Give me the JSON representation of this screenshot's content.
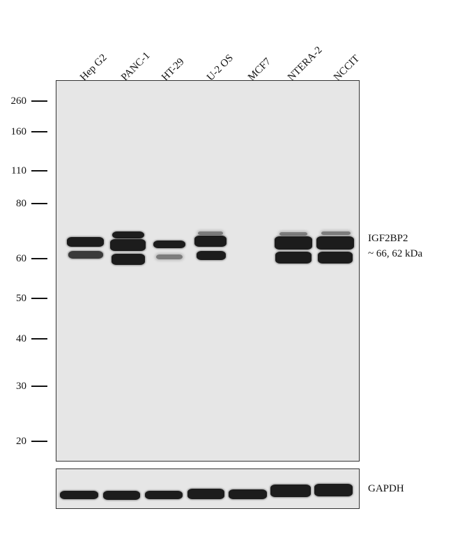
{
  "lanes": [
    "Hep G2",
    "PANC-1",
    "HT-29",
    "U-2 OS",
    "MCF7",
    "NTERA-2",
    "NCCIT"
  ],
  "markers": [
    "260",
    "160",
    "110",
    "80",
    "60",
    "50",
    "40",
    "30",
    "20"
  ],
  "target": {
    "name": "IGF2BP2",
    "size": "~ 66, 62 kDa"
  },
  "loading_control": "GAPDH"
}
